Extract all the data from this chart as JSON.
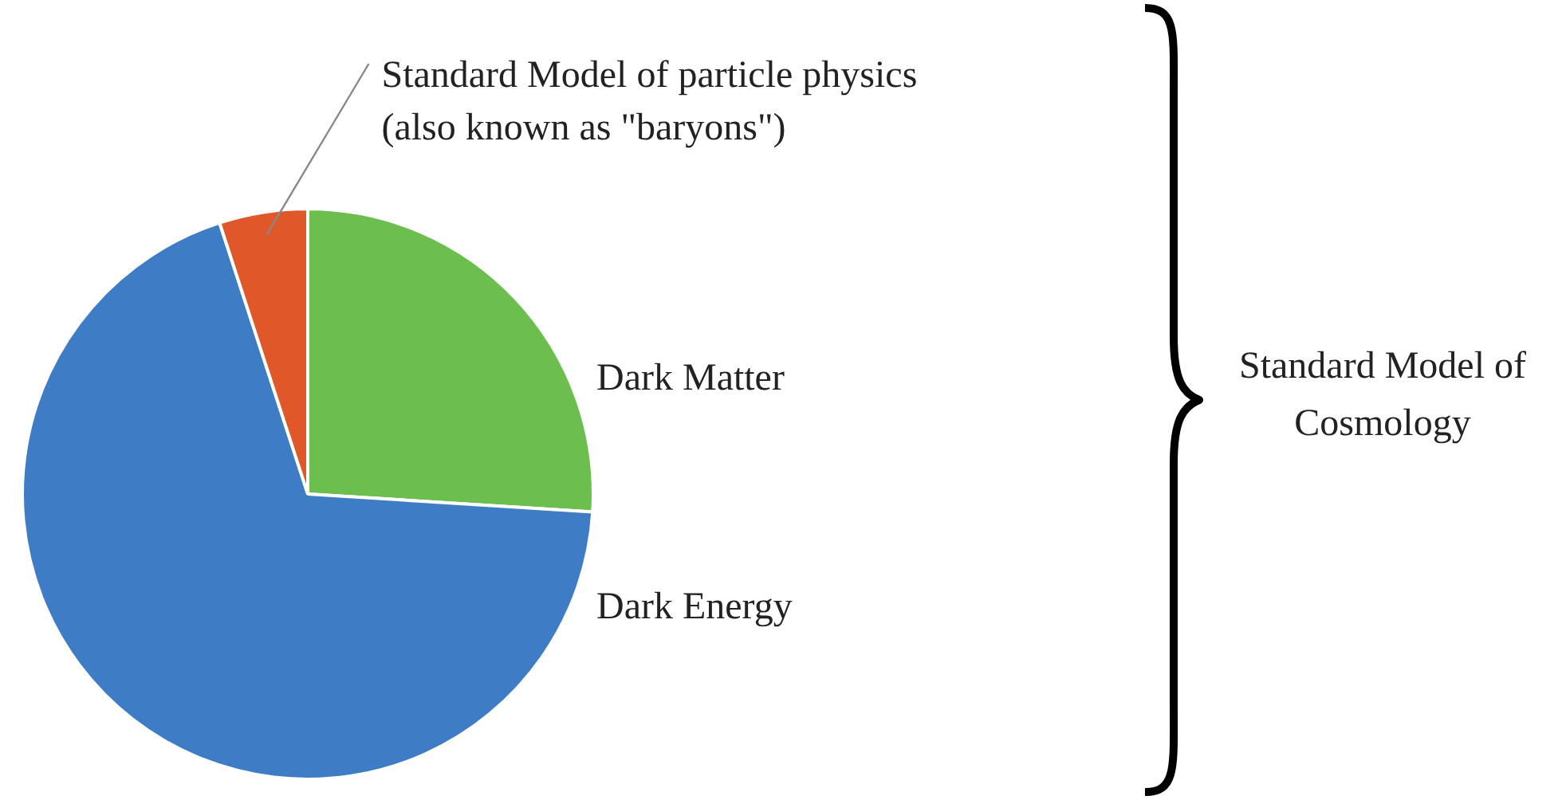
{
  "chart_data": {
    "type": "pie",
    "categories": [
      "Dark Matter",
      "Dark Energy",
      "Standard Model of particle physics (also known as \"baryons\")"
    ],
    "values": [
      26,
      69,
      5
    ],
    "colors": [
      "#6cbf4e",
      "#3f7cc6",
      "#e0572a"
    ],
    "legend": false,
    "annotations": [
      "Standard Model of Cosmology"
    ]
  }
}
